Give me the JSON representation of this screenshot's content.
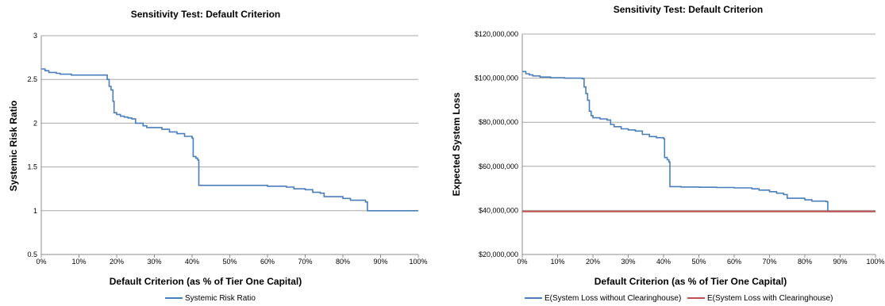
{
  "chart_data": [
    {
      "type": "line",
      "title": "Sensitivity Test: Default Criterion",
      "xlabel": "Default Criterion (as % of Tier One Capital)",
      "ylabel": "Systemic  Risk Ratio",
      "xlim": [
        0,
        100
      ],
      "ylim": [
        0.5,
        3
      ],
      "x_ticks": [
        "0%",
        "10%",
        "20%",
        "30%",
        "40%",
        "50%",
        "60%",
        "70%",
        "80%",
        "90%",
        "100%"
      ],
      "y_ticks": [
        "0.5",
        "1",
        "1.5",
        "2",
        "2.5",
        "3"
      ],
      "y_tick_values": [
        0.5,
        1,
        1.5,
        2,
        2.5,
        3
      ],
      "legend_position": "bottom",
      "series": [
        {
          "name": "Systemic Risk Ratio",
          "color": "#4a7ebb",
          "points": [
            [
              0,
              2.62
            ],
            [
              1,
              2.6
            ],
            [
              2,
              2.58
            ],
            [
              3,
              2.58
            ],
            [
              4,
              2.57
            ],
            [
              5,
              2.56
            ],
            [
              8,
              2.55
            ],
            [
              12,
              2.55
            ],
            [
              15,
              2.55
            ],
            [
              17,
              2.55
            ],
            [
              17.5,
              2.5
            ],
            [
              18,
              2.42
            ],
            [
              18.5,
              2.38
            ],
            [
              19,
              2.25
            ],
            [
              19.3,
              2.12
            ],
            [
              20,
              2.1
            ],
            [
              21,
              2.08
            ],
            [
              22,
              2.07
            ],
            [
              23,
              2.06
            ],
            [
              24,
              2.05
            ],
            [
              25,
              2.0
            ],
            [
              26,
              2.0
            ],
            [
              27,
              1.97
            ],
            [
              28,
              1.95
            ],
            [
              30,
              1.95
            ],
            [
              32,
              1.93
            ],
            [
              34,
              1.9
            ],
            [
              36,
              1.88
            ],
            [
              38,
              1.85
            ],
            [
              40,
              1.83
            ],
            [
              40.3,
              1.62
            ],
            [
              41,
              1.6
            ],
            [
              41.5,
              1.58
            ],
            [
              41.8,
              1.29
            ],
            [
              45,
              1.29
            ],
            [
              50,
              1.29
            ],
            [
              55,
              1.29
            ],
            [
              60,
              1.28
            ],
            [
              65,
              1.27
            ],
            [
              67,
              1.25
            ],
            [
              70,
              1.24
            ],
            [
              72,
              1.21
            ],
            [
              74,
              1.2
            ],
            [
              75,
              1.16
            ],
            [
              80,
              1.14
            ],
            [
              82,
              1.12
            ],
            [
              86,
              1.1
            ],
            [
              86.5,
              1.0
            ],
            [
              90,
              1.0
            ],
            [
              100,
              1.0
            ]
          ]
        }
      ]
    },
    {
      "type": "line",
      "title": "Sensitivity Test: Default Criterion",
      "xlabel": "Default Criterion (as % of Tier One Capital)",
      "ylabel": "Expected System Loss",
      "xlim": [
        0,
        100
      ],
      "ylim": [
        20000000,
        120000000
      ],
      "x_ticks": [
        "0%",
        "10%",
        "20%",
        "30%",
        "40%",
        "50%",
        "60%",
        "70%",
        "80%",
        "90%",
        "100%"
      ],
      "y_ticks": [
        "$20,000,000",
        "$40,000,000",
        "$60,000,000",
        "$80,000,000",
        "$100,000,000",
        "$120,000,000"
      ],
      "y_tick_values": [
        20000000,
        40000000,
        60000000,
        80000000,
        100000000,
        120000000
      ],
      "legend_position": "bottom",
      "series": [
        {
          "name": "E(System Loss without Clearinghouse)",
          "color": "#4a7ebb",
          "points": [
            [
              0,
              103000000
            ],
            [
              1,
              102000000
            ],
            [
              2,
              101500000
            ],
            [
              3,
              101000000
            ],
            [
              5,
              100500000
            ],
            [
              8,
              100200000
            ],
            [
              12,
              100000000
            ],
            [
              15,
              100000000
            ],
            [
              17,
              99800000
            ],
            [
              17.5,
              96000000
            ],
            [
              18,
              93000000
            ],
            [
              18.5,
              90000000
            ],
            [
              19,
              85000000
            ],
            [
              19.5,
              83000000
            ],
            [
              20,
              82000000
            ],
            [
              22,
              81500000
            ],
            [
              24,
              81000000
            ],
            [
              25,
              79000000
            ],
            [
              26,
              78000000
            ],
            [
              27,
              78000000
            ],
            [
              28,
              77000000
            ],
            [
              30,
              76500000
            ],
            [
              32,
              76000000
            ],
            [
              34,
              74500000
            ],
            [
              36,
              73500000
            ],
            [
              38,
              73000000
            ],
            [
              40,
              72500000
            ],
            [
              40.3,
              64000000
            ],
            [
              41,
              63000000
            ],
            [
              41.5,
              62000000
            ],
            [
              41.8,
              50800000
            ],
            [
              45,
              50600000
            ],
            [
              50,
              50500000
            ],
            [
              55,
              50400000
            ],
            [
              60,
              50200000
            ],
            [
              65,
              49800000
            ],
            [
              67,
              49200000
            ],
            [
              70,
              48500000
            ],
            [
              72,
              47800000
            ],
            [
              74,
              47200000
            ],
            [
              75,
              45500000
            ],
            [
              80,
              44800000
            ],
            [
              82,
              44200000
            ],
            [
              86,
              44000000
            ],
            [
              86.5,
              39500000
            ],
            [
              90,
              39500000
            ],
            [
              100,
              39500000
            ]
          ]
        },
        {
          "name": "E(System Loss with Clearinghouse)",
          "color": "#c0504d",
          "points": [
            [
              0,
              39500000
            ],
            [
              100,
              39500000
            ]
          ]
        }
      ]
    }
  ]
}
